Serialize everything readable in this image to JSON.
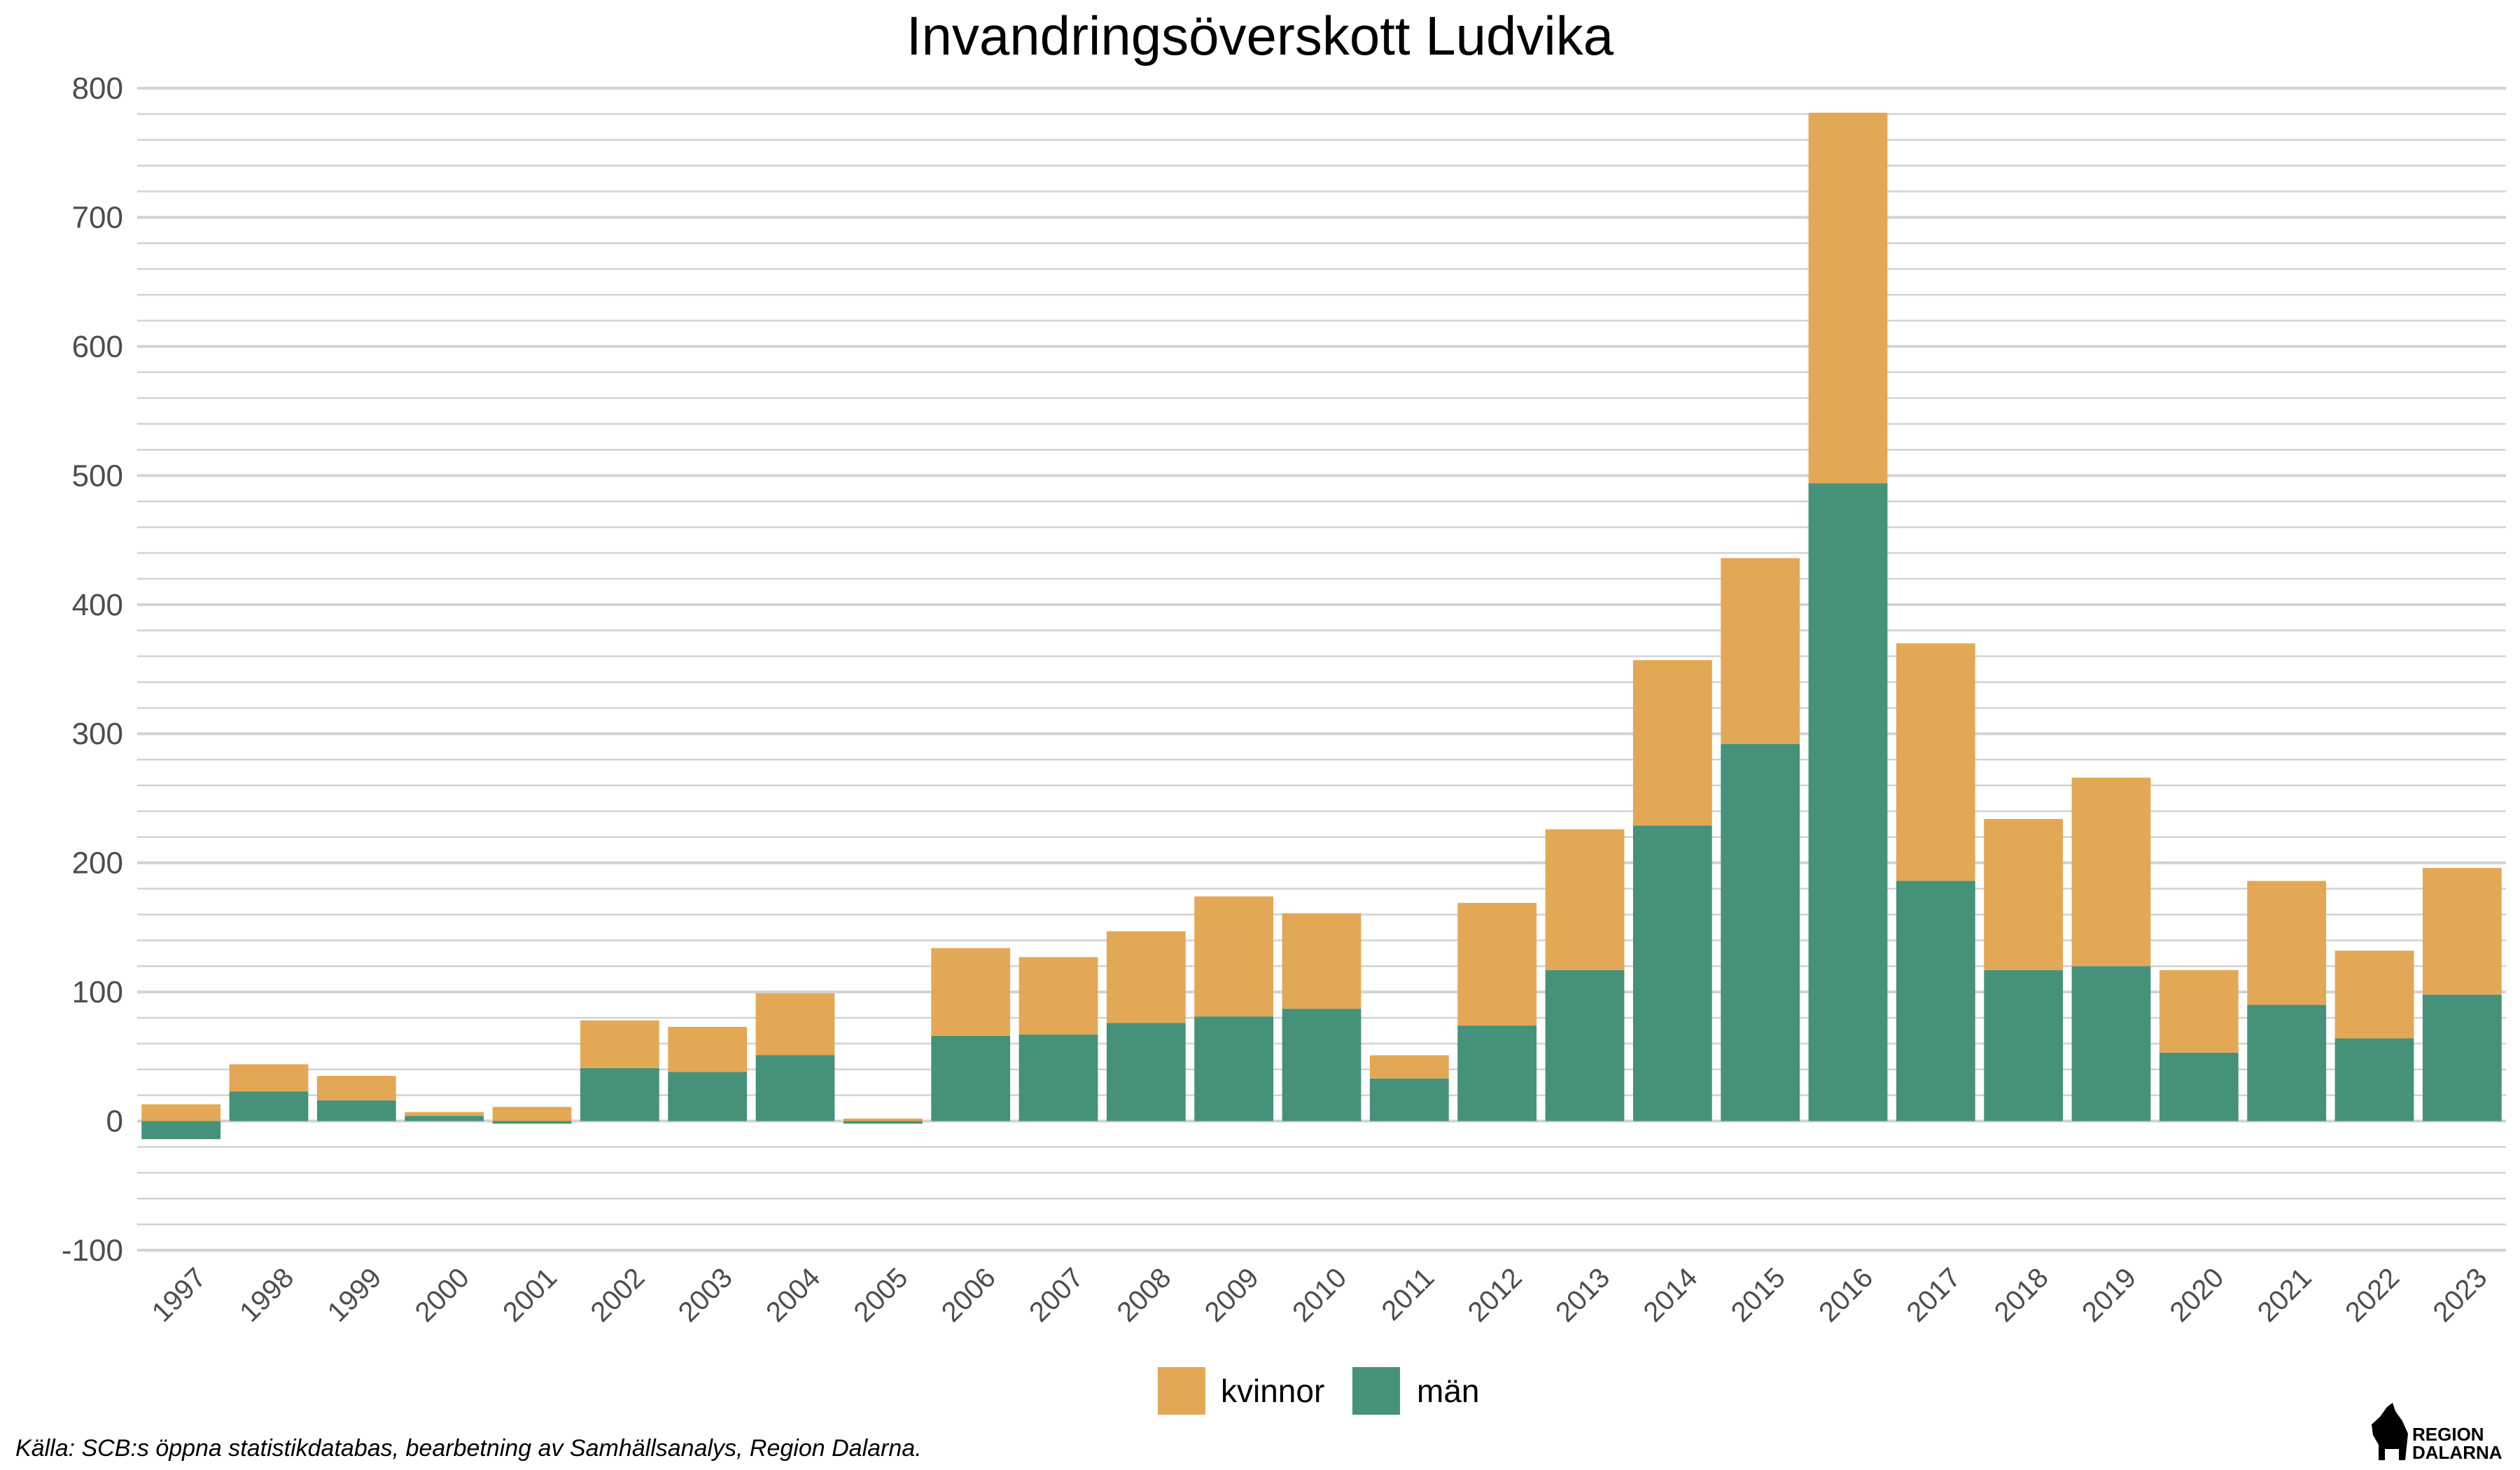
{
  "chart_data": {
    "type": "bar",
    "stacked": true,
    "title": "Invandringsöverskott Ludvika",
    "xlabel": "",
    "ylabel": "",
    "categories": [
      "1997",
      "1998",
      "1999",
      "2000",
      "2001",
      "2002",
      "2003",
      "2004",
      "2005",
      "2006",
      "2007",
      "2008",
      "2009",
      "2010",
      "2011",
      "2012",
      "2013",
      "2014",
      "2015",
      "2016",
      "2017",
      "2018",
      "2019",
      "2020",
      "2021",
      "2022",
      "2023"
    ],
    "series": [
      {
        "name": "män",
        "color": "#46917a",
        "values": [
          -14,
          23,
          16,
          4,
          -2,
          41,
          38,
          51,
          -2,
          66,
          67,
          76,
          81,
          87,
          33,
          74,
          117,
          229,
          292,
          494,
          186,
          117,
          120,
          53,
          90,
          64,
          98
        ]
      },
      {
        "name": "kvinnor",
        "color": "#e3a855",
        "values": [
          13,
          21,
          19,
          3,
          11,
          37,
          35,
          48,
          2,
          68,
          60,
          71,
          93,
          74,
          18,
          95,
          109,
          128,
          144,
          287,
          184,
          117,
          146,
          64,
          96,
          68,
          98
        ]
      }
    ],
    "ylim": [
      -100,
      800
    ],
    "yticks": [
      "-100",
      "0",
      "100",
      "200",
      "300",
      "400",
      "500",
      "600",
      "700",
      "800"
    ],
    "grid": true,
    "legend_position": "bottom"
  },
  "caption": "Källa: SCB:s öppna statistikdatabas, bearbetning av Samhällsanalys, Region Dalarna.",
  "logo": {
    "line1": "REGION",
    "line2": "DALARNA"
  }
}
